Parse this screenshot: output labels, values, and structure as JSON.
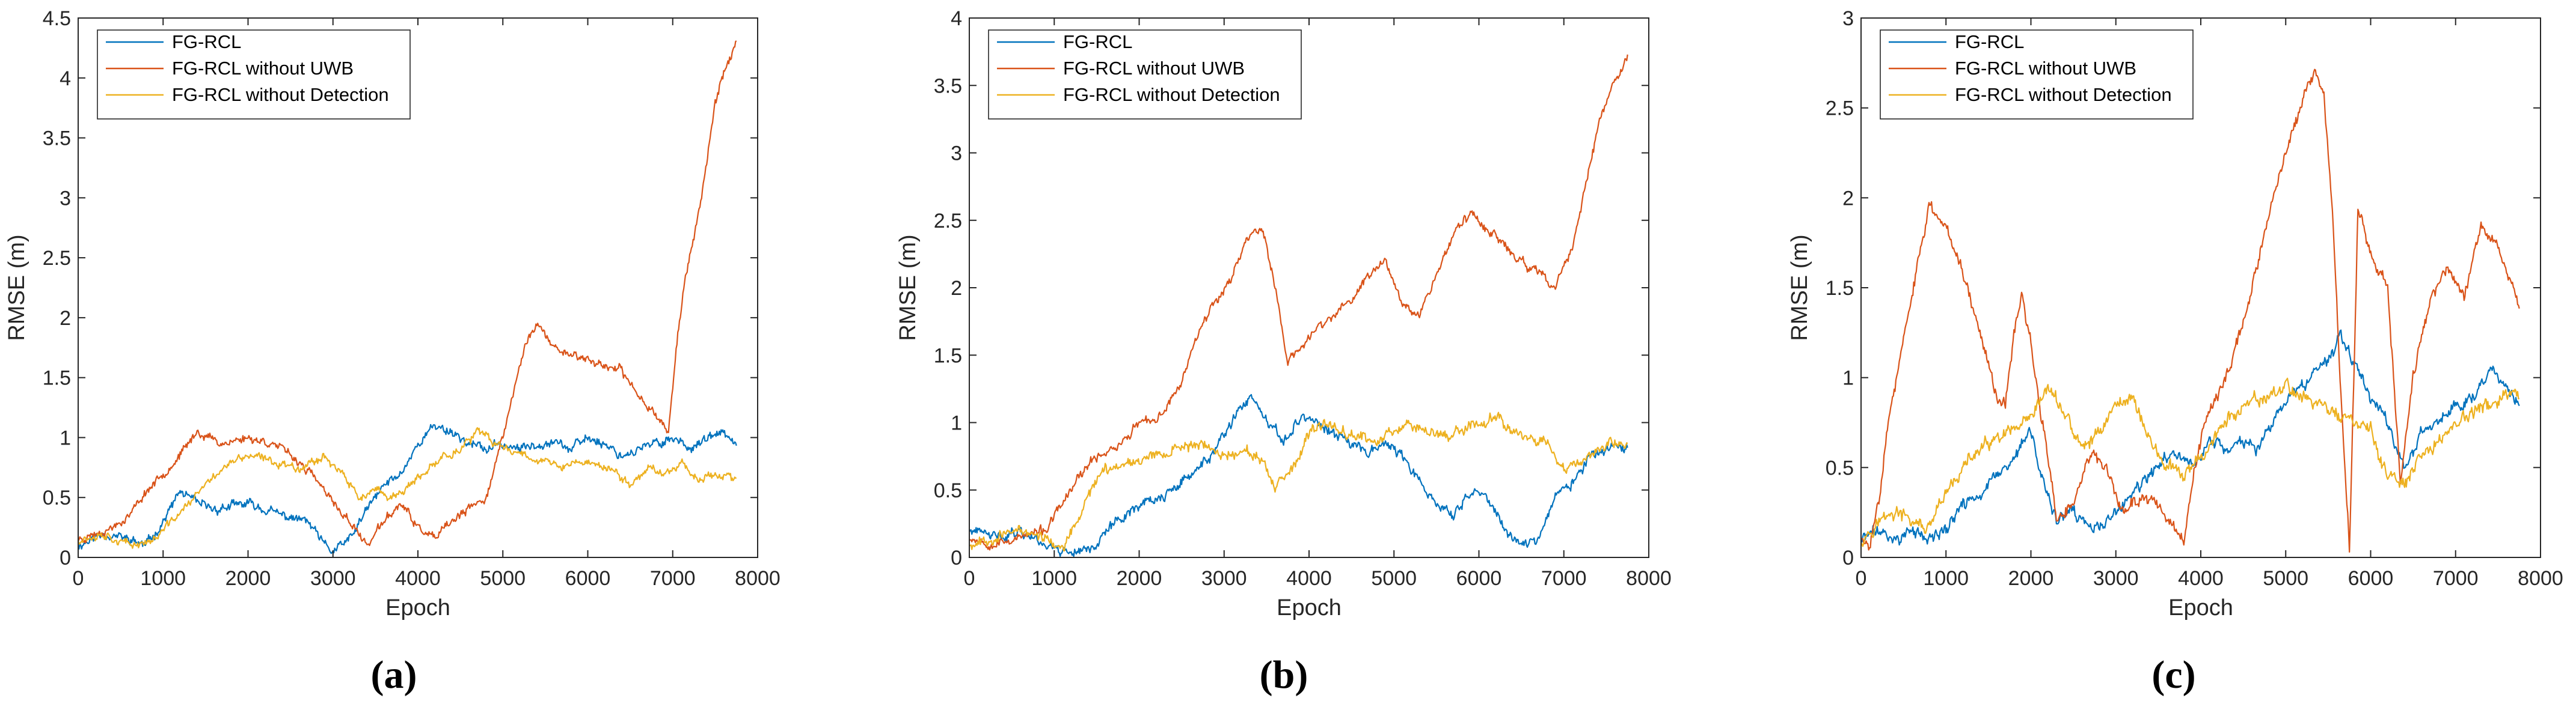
{
  "chart_data": [
    {
      "type": "line",
      "caption": "(a)",
      "xlabel": "Epoch",
      "ylabel": "RMSE (m)",
      "xlim": [
        0,
        8000
      ],
      "ylim": [
        0,
        4.5
      ],
      "xticks": [
        0,
        1000,
        2000,
        3000,
        4000,
        5000,
        6000,
        7000,
        8000
      ],
      "yticks": [
        0,
        0.5,
        1,
        1.5,
        2,
        2.5,
        3,
        3.5,
        4,
        4.5
      ],
      "ytick_labels": [
        "0",
        "0.5",
        "1",
        "1.5",
        "2",
        "2.5",
        "3",
        "3.5",
        "4",
        "4.5"
      ],
      "grid": false,
      "legend_position": "top-left",
      "series": [
        {
          "name": "FG-RCL",
          "color": "#0072BD",
          "noise": 0.045,
          "seed": 11,
          "x": [
            0,
            300,
            600,
            800,
            1000,
            1200,
            1400,
            1600,
            2000,
            2400,
            2700,
            2900,
            3000,
            3200,
            3400,
            3600,
            3800,
            4000,
            4200,
            4400,
            4600,
            4800,
            5000,
            5200,
            5400,
            5600,
            5800,
            6000,
            6200,
            6400,
            6600,
            6800,
            7000,
            7200,
            7400,
            7600,
            7750
          ],
          "y": [
            0.1,
            0.2,
            0.15,
            0.1,
            0.3,
            0.55,
            0.45,
            0.4,
            0.45,
            0.35,
            0.3,
            0.1,
            0.05,
            0.15,
            0.4,
            0.6,
            0.7,
            0.95,
            1.1,
            1.05,
            0.95,
            0.9,
            0.95,
            0.9,
            0.95,
            0.98,
            0.9,
            1.0,
            0.95,
            0.85,
            0.9,
            0.95,
            1.0,
            0.92,
            0.98,
            1.05,
            0.9
          ]
        },
        {
          "name": "FG-RCL without UWB",
          "color": "#D95319",
          "noise": 0.04,
          "seed": 23,
          "x": [
            0,
            200,
            400,
            600,
            800,
            1000,
            1200,
            1400,
            1700,
            2000,
            2300,
            2600,
            2800,
            3000,
            3200,
            3400,
            3600,
            3800,
            4000,
            4200,
            4400,
            4600,
            4800,
            5000,
            5200,
            5300,
            5400,
            5600,
            5800,
            6000,
            6200,
            6400,
            6600,
            6800,
            6950,
            7050,
            7150,
            7250,
            7400,
            7500,
            7600,
            7750
          ],
          "y": [
            0.15,
            0.2,
            0.25,
            0.35,
            0.55,
            0.7,
            0.85,
            1.05,
            0.95,
            1.0,
            0.95,
            0.8,
            0.65,
            0.45,
            0.3,
            0.1,
            0.3,
            0.45,
            0.25,
            0.15,
            0.3,
            0.4,
            0.5,
            1.0,
            1.6,
            1.85,
            1.95,
            1.75,
            1.7,
            1.65,
            1.6,
            1.55,
            1.35,
            1.2,
            1.05,
            1.8,
            2.35,
            2.65,
            3.3,
            3.8,
            4.05,
            4.3
          ]
        },
        {
          "name": "FG-RCL without Detection",
          "color": "#EDB120",
          "noise": 0.04,
          "seed": 37,
          "x": [
            0,
            300,
            600,
            900,
            1100,
            1300,
            1500,
            1700,
            2000,
            2300,
            2600,
            2900,
            3100,
            3300,
            3500,
            3700,
            3900,
            4100,
            4300,
            4500,
            4700,
            4900,
            5100,
            5300,
            5500,
            5700,
            5900,
            6100,
            6300,
            6500,
            6700,
            6900,
            7100,
            7300,
            7500,
            7750
          ],
          "y": [
            0.15,
            0.2,
            0.1,
            0.15,
            0.3,
            0.45,
            0.6,
            0.75,
            0.85,
            0.8,
            0.75,
            0.85,
            0.7,
            0.5,
            0.55,
            0.5,
            0.6,
            0.7,
            0.85,
            0.9,
            1.05,
            0.95,
            0.9,
            0.85,
            0.8,
            0.75,
            0.8,
            0.78,
            0.72,
            0.6,
            0.75,
            0.7,
            0.8,
            0.65,
            0.7,
            0.65
          ]
        }
      ]
    },
    {
      "type": "line",
      "caption": "(b)",
      "xlabel": "Epoch",
      "ylabel": "RMSE (m)",
      "xlim": [
        0,
        8000
      ],
      "ylim": [
        0,
        4
      ],
      "xticks": [
        0,
        1000,
        2000,
        3000,
        4000,
        5000,
        6000,
        7000,
        8000
      ],
      "yticks": [
        0,
        0.5,
        1,
        1.5,
        2,
        2.5,
        3,
        3.5,
        4
      ],
      "ytick_labels": [
        "0",
        "0.5",
        "1",
        "1.5",
        "2",
        "2.5",
        "3",
        "3.5",
        "4"
      ],
      "grid": false,
      "legend_position": "top-left",
      "series": [
        {
          "name": "FG-RCL",
          "color": "#0072BD",
          "noise": 0.045,
          "seed": 41,
          "x": [
            0,
            300,
            600,
            900,
            1100,
            1300,
            1500,
            1700,
            2000,
            2300,
            2600,
            2900,
            3100,
            3300,
            3500,
            3700,
            3900,
            4100,
            4300,
            4500,
            4700,
            4900,
            5100,
            5300,
            5500,
            5700,
            5900,
            6100,
            6300,
            6500,
            6700,
            6900,
            7100,
            7300,
            7500,
            7750
          ],
          "y": [
            0.2,
            0.15,
            0.2,
            0.1,
            0.05,
            0.05,
            0.1,
            0.25,
            0.4,
            0.45,
            0.6,
            0.8,
            1.0,
            1.2,
            1.0,
            0.85,
            1.05,
            1.0,
            0.9,
            0.85,
            0.8,
            0.85,
            0.75,
            0.55,
            0.4,
            0.3,
            0.5,
            0.45,
            0.2,
            0.1,
            0.15,
            0.45,
            0.55,
            0.75,
            0.8,
            0.78
          ]
        },
        {
          "name": "FG-RCL without UWB",
          "color": "#D95319",
          "noise": 0.04,
          "seed": 53,
          "x": [
            0,
            300,
            600,
            900,
            1100,
            1300,
            1500,
            1800,
            2000,
            2200,
            2500,
            2700,
            2900,
            3100,
            3300,
            3450,
            3600,
            3750,
            3900,
            4100,
            4300,
            4500,
            4700,
            4900,
            5100,
            5300,
            5500,
            5700,
            5900,
            6100,
            6300,
            6500,
            6700,
            6900,
            7100,
            7300,
            7500,
            7750
          ],
          "y": [
            0.15,
            0.1,
            0.15,
            0.2,
            0.4,
            0.6,
            0.75,
            0.85,
            1.0,
            1.0,
            1.3,
            1.7,
            1.9,
            2.1,
            2.4,
            2.45,
            2.0,
            1.45,
            1.55,
            1.7,
            1.8,
            1.9,
            2.1,
            2.2,
            1.9,
            1.8,
            2.1,
            2.4,
            2.55,
            2.45,
            2.3,
            2.2,
            2.1,
            2.0,
            2.3,
            2.9,
            3.4,
            3.7
          ]
        },
        {
          "name": "FG-RCL without Detection",
          "color": "#EDB120",
          "noise": 0.045,
          "seed": 67,
          "x": [
            0,
            300,
            600,
            900,
            1100,
            1300,
            1500,
            1800,
            2100,
            2400,
            2700,
            3000,
            3200,
            3400,
            3600,
            3800,
            4000,
            4200,
            4400,
            4600,
            4800,
            5000,
            5200,
            5400,
            5600,
            5800,
            6000,
            6200,
            6400,
            6600,
            6800,
            7000,
            7200,
            7400,
            7600,
            7750
          ],
          "y": [
            0.1,
            0.15,
            0.2,
            0.15,
            0.05,
            0.3,
            0.6,
            0.7,
            0.75,
            0.8,
            0.85,
            0.75,
            0.8,
            0.75,
            0.5,
            0.65,
            0.9,
            1.0,
            0.95,
            0.9,
            0.85,
            0.95,
            1.0,
            0.95,
            0.9,
            0.95,
            1.0,
            1.05,
            0.95,
            0.9,
            0.85,
            0.65,
            0.7,
            0.8,
            0.85,
            0.82
          ]
        }
      ]
    },
    {
      "type": "line",
      "caption": "(c)",
      "xlabel": "Epoch",
      "ylabel": "RMSE (m)",
      "xlim": [
        0,
        8000
      ],
      "ylim": [
        0,
        3
      ],
      "xticks": [
        0,
        1000,
        2000,
        3000,
        4000,
        5000,
        6000,
        7000,
        8000
      ],
      "yticks": [
        0,
        0.5,
        1,
        1.5,
        2,
        2.5,
        3
      ],
      "ytick_labels": [
        "0",
        "0.5",
        "1",
        "1.5",
        "2",
        "2.5",
        "3"
      ],
      "grid": false,
      "legend_position": "top-left",
      "series": [
        {
          "name": "FG-RCL",
          "color": "#0072BD",
          "noise": 0.04,
          "seed": 71,
          "x": [
            0,
            200,
            400,
            600,
            800,
            1000,
            1200,
            1400,
            1600,
            1800,
            2000,
            2100,
            2300,
            2500,
            2700,
            2900,
            3100,
            3300,
            3500,
            3700,
            3900,
            4100,
            4300,
            4500,
            4700,
            4900,
            5100,
            5300,
            5500,
            5650,
            5800,
            6000,
            6200,
            6400,
            6600,
            6800,
            7000,
            7200,
            7400,
            7600,
            7750
          ],
          "y": [
            0.1,
            0.15,
            0.1,
            0.15,
            0.1,
            0.15,
            0.3,
            0.35,
            0.45,
            0.55,
            0.7,
            0.5,
            0.2,
            0.25,
            0.15,
            0.2,
            0.3,
            0.4,
            0.5,
            0.6,
            0.5,
            0.65,
            0.6,
            0.65,
            0.6,
            0.8,
            0.9,
            1.0,
            1.1,
            1.25,
            1.1,
            0.9,
            0.75,
            0.5,
            0.7,
            0.75,
            0.85,
            0.9,
            1.05,
            0.95,
            0.85
          ]
        },
        {
          "name": "FG-RCL without UWB",
          "color": "#D95319",
          "noise": 0.04,
          "seed": 83,
          "x": [
            0,
            100,
            200,
            300,
            500,
            700,
            800,
            1000,
            1200,
            1400,
            1600,
            1700,
            1800,
            1900,
            2000,
            2100,
            2200,
            2300,
            2500,
            2700,
            2900,
            3100,
            3300,
            3500,
            3700,
            3800,
            3900,
            4000,
            4100,
            4300,
            4500,
            4700,
            4900,
            5100,
            5250,
            5350,
            5450,
            5550,
            5650,
            5750,
            5850,
            6000,
            6200,
            6350,
            6500,
            6700,
            6900,
            7100,
            7300,
            7500,
            7750
          ],
          "y": [
            0.1,
            0.05,
            0.3,
            0.7,
            1.2,
            1.7,
            1.95,
            1.85,
            1.6,
            1.25,
            0.9,
            0.85,
            1.25,
            1.45,
            1.2,
            0.85,
            0.55,
            0.2,
            0.3,
            0.6,
            0.45,
            0.25,
            0.35,
            0.3,
            0.15,
            0.05,
            0.4,
            0.65,
            0.8,
            1.0,
            1.3,
            1.7,
            2.1,
            2.4,
            2.6,
            2.72,
            2.55,
            1.9,
            0.9,
            0.05,
            1.95,
            1.7,
            1.5,
            0.45,
            1.0,
            1.45,
            1.6,
            1.45,
            1.85,
            1.75,
            1.4
          ]
        },
        {
          "name": "FG-RCL without Detection",
          "color": "#EDB120",
          "noise": 0.045,
          "seed": 97,
          "x": [
            0,
            200,
            400,
            600,
            800,
            1000,
            1200,
            1400,
            1600,
            1800,
            2000,
            2200,
            2400,
            2600,
            2800,
            3000,
            3200,
            3400,
            3600,
            3800,
            4000,
            4200,
            4400,
            4600,
            4800,
            5000,
            5200,
            5400,
            5600,
            5800,
            6000,
            6200,
            6400,
            6600,
            6800,
            7000,
            7200,
            7400,
            7600,
            7750
          ],
          "y": [
            0.1,
            0.2,
            0.25,
            0.2,
            0.15,
            0.35,
            0.5,
            0.6,
            0.65,
            0.7,
            0.75,
            0.95,
            0.8,
            0.6,
            0.7,
            0.85,
            0.9,
            0.65,
            0.5,
            0.45,
            0.55,
            0.7,
            0.8,
            0.85,
            0.9,
            0.95,
            0.9,
            0.85,
            0.8,
            0.75,
            0.7,
            0.45,
            0.4,
            0.55,
            0.65,
            0.75,
            0.8,
            0.85,
            0.9,
            0.88
          ]
        }
      ]
    }
  ]
}
